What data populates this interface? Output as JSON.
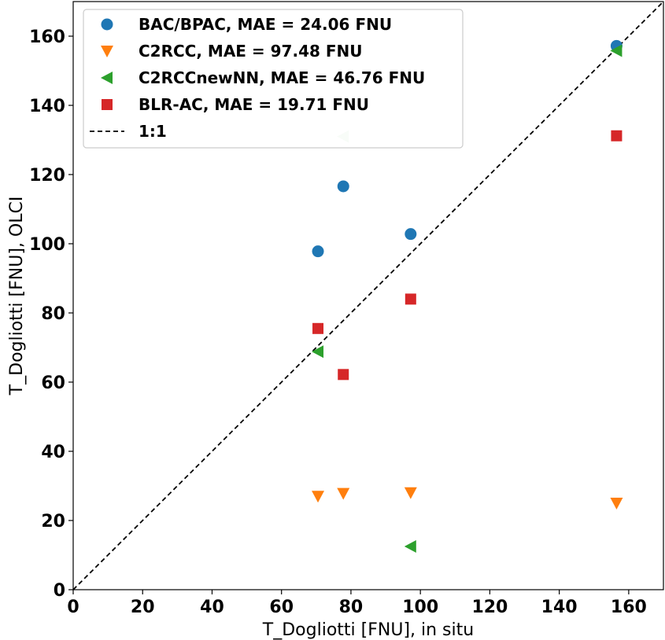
{
  "chart_data": {
    "type": "scatter",
    "xlabel": "T_Dogliotti [FNU], in situ",
    "ylabel": "T_Dogliotti [FNU], OLCI",
    "xlim": [
      0,
      170
    ],
    "ylim": [
      0,
      170
    ],
    "xticks": [
      "0",
      "20",
      "40",
      "60",
      "80",
      "100",
      "120",
      "140",
      "160"
    ],
    "yticks": [
      "0",
      "20",
      "40",
      "60",
      "80",
      "100",
      "120",
      "140",
      "160"
    ],
    "grid": false,
    "legend_position": "top-left",
    "series": [
      {
        "name": "BAC/BPAC, MAE = 24.06 FNU",
        "marker": "circle",
        "color": "#1f77b4",
        "points": [
          [
            70.5,
            97.8
          ],
          [
            77.8,
            116.6
          ],
          [
            97.2,
            102.8
          ],
          [
            156.5,
            157.2
          ]
        ]
      },
      {
        "name": "C2RCC, MAE = 97.48 FNU",
        "marker": "triangle-down",
        "color": "#ff7f0e",
        "points": [
          [
            70.5,
            27.0
          ],
          [
            77.8,
            27.8
          ],
          [
            97.2,
            28.0
          ],
          [
            156.5,
            25.0
          ]
        ]
      },
      {
        "name": "C2RCCnewNN, MAE = 46.76 FNU",
        "marker": "triangle-left",
        "color": "#2ca02c",
        "points": [
          [
            70.5,
            68.8
          ],
          [
            77.8,
            131.0
          ],
          [
            97.2,
            12.5
          ],
          [
            156.5,
            155.8
          ]
        ],
        "faded_points": [
          1
        ]
      },
      {
        "name": "BLR-AC, MAE = 19.71 FNU",
        "marker": "square",
        "color": "#d62728",
        "points": [
          [
            70.5,
            75.5
          ],
          [
            77.8,
            62.2
          ],
          [
            97.2,
            84.0
          ],
          [
            156.5,
            131.2
          ]
        ]
      }
    ],
    "reference_line": {
      "name": "1:1",
      "style": "dashed",
      "color": "#000000",
      "points": [
        [
          0,
          0
        ],
        [
          170,
          170
        ]
      ]
    }
  }
}
